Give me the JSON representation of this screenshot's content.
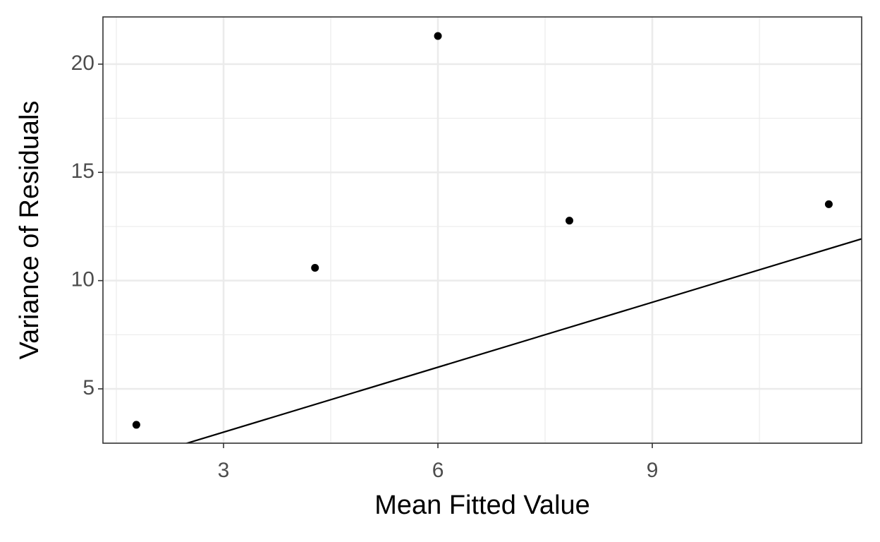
{
  "chart_data": {
    "type": "scatter",
    "x_label": "Mean Fitted Value",
    "y_label": "Variance of Residuals",
    "series": [
      {
        "color": "#000000",
        "x": [
          1.78,
          4.28,
          6.0,
          7.84,
          11.47
        ],
        "values": [
          3.34,
          10.59,
          21.3,
          12.77,
          13.53
        ]
      }
    ],
    "reference_line": {
      "slope": 1,
      "intercept": 0,
      "color": "#000000"
    },
    "xlim": [
      1.3125,
      11.93
    ],
    "ylim": [
      2.49,
      22.18
    ],
    "xticks": [
      3,
      6,
      9
    ],
    "yticks": [
      5,
      10,
      15,
      20
    ],
    "grid": true
  }
}
